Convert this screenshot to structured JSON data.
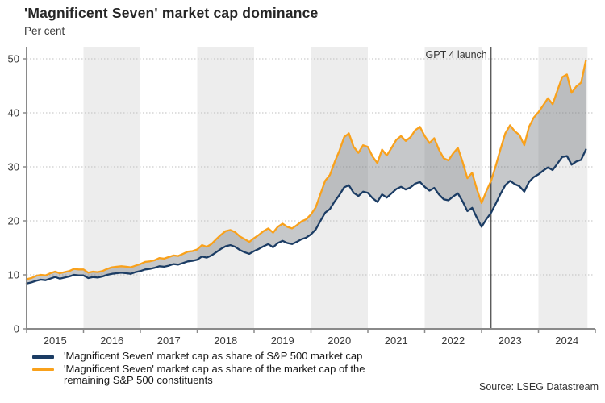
{
  "header": {
    "title": "'Magnificent Seven' market cap dominance",
    "subtitle": "Per cent"
  },
  "source": "Source: LSEG Datastream",
  "legend": [
    {
      "label": "'Magnificent Seven' market cap as share of S&P 500 market cap",
      "color": "#1b3c64"
    },
    {
      "label": "'Magnificent Seven' market cap as share of the market cap of the remaining S&P 500 constituents",
      "color": "#f9a11b"
    }
  ],
  "colors": {
    "band": "#ededed",
    "grid": "#bfbfbf",
    "axis": "#8a8a8a",
    "fill_between": "rgba(105,110,116,0.38)",
    "annotation_line": "#3f3f3f",
    "tick_text": "#3a3a3a"
  },
  "chart_data": {
    "type": "line",
    "title": "'Magnificent Seven' market cap dominance",
    "ylabel": "Per cent",
    "ylim": [
      0,
      52
    ],
    "yticks": [
      0,
      10,
      20,
      30,
      40,
      50
    ],
    "grid": "dotted-horizontal",
    "x_start": "2015-01",
    "x_end": "2024-11",
    "freq": "monthly",
    "xtick_labels": [
      "2015",
      "2016",
      "2017",
      "2018",
      "2019",
      "2020",
      "2021",
      "2022",
      "2023",
      "2024"
    ],
    "shaded_years": [
      2016,
      2018,
      2020,
      2022,
      2024
    ],
    "annotation": {
      "label": "GPT 4 launch",
      "x": "2023-03"
    },
    "legend_position": "bottom",
    "fill_between_series": true,
    "series": [
      {
        "name": "'Magnificent Seven' market cap as share of S&P 500 market cap",
        "color": "#1b3c64",
        "values": [
          8.4,
          8.6,
          8.9,
          9.1,
          9.0,
          9.3,
          9.6,
          9.3,
          9.5,
          9.7,
          10.0,
          9.9,
          9.9,
          9.4,
          9.6,
          9.5,
          9.7,
          10.0,
          10.2,
          10.3,
          10.4,
          10.3,
          10.2,
          10.5,
          10.7,
          11.0,
          11.1,
          11.3,
          11.6,
          11.5,
          11.7,
          12.0,
          11.9,
          12.2,
          12.5,
          12.6,
          12.8,
          13.4,
          13.2,
          13.6,
          14.2,
          14.8,
          15.3,
          15.5,
          15.2,
          14.6,
          14.2,
          13.9,
          14.4,
          14.8,
          15.3,
          15.7,
          15.1,
          15.9,
          16.3,
          15.9,
          15.7,
          16.1,
          16.6,
          16.9,
          17.5,
          18.4,
          20.0,
          21.5,
          22.2,
          23.6,
          24.8,
          26.2,
          26.6,
          25.2,
          24.6,
          25.4,
          25.2,
          24.2,
          23.5,
          24.9,
          24.3,
          25.1,
          25.9,
          26.3,
          25.8,
          26.2,
          26.9,
          27.2,
          26.3,
          25.6,
          26.1,
          24.9,
          24.0,
          23.8,
          24.5,
          25.1,
          23.6,
          21.8,
          22.4,
          20.6,
          18.9,
          20.3,
          21.5,
          23.2,
          25.0,
          26.6,
          27.4,
          26.8,
          26.4,
          25.4,
          27.2,
          28.1,
          28.6,
          29.3,
          29.9,
          29.4,
          30.6,
          31.8,
          32.0,
          30.4,
          31.0,
          31.3,
          33.2
        ]
      },
      {
        "name": "'Magnificent Seven' market cap as share of the market cap of the remaining S&P 500 constituents",
        "color": "#f9a11b",
        "values": [
          9.2,
          9.4,
          9.8,
          10.0,
          9.9,
          10.3,
          10.6,
          10.3,
          10.5,
          10.7,
          11.1,
          11.0,
          11.0,
          10.4,
          10.6,
          10.5,
          10.7,
          11.1,
          11.4,
          11.5,
          11.6,
          11.5,
          11.4,
          11.7,
          12.0,
          12.4,
          12.5,
          12.7,
          13.1,
          13.0,
          13.3,
          13.6,
          13.5,
          13.9,
          14.3,
          14.4,
          14.7,
          15.5,
          15.2,
          15.7,
          16.6,
          17.4,
          18.1,
          18.3,
          17.9,
          17.1,
          16.6,
          16.1,
          16.8,
          17.4,
          18.1,
          18.6,
          17.8,
          18.9,
          19.5,
          18.9,
          18.6,
          19.2,
          19.9,
          20.3,
          21.2,
          22.5,
          25.0,
          27.4,
          28.5,
          30.9,
          33.0,
          35.5,
          36.2,
          33.7,
          32.6,
          34.0,
          33.7,
          31.9,
          30.7,
          33.2,
          32.1,
          33.5,
          35.0,
          35.7,
          34.8,
          35.5,
          36.8,
          37.4,
          35.7,
          34.4,
          35.3,
          33.2,
          31.6,
          31.2,
          32.5,
          33.5,
          30.9,
          27.9,
          28.9,
          25.9,
          23.3,
          25.5,
          27.4,
          30.2,
          33.3,
          36.2,
          37.7,
          36.6,
          35.9,
          34.0,
          37.4,
          39.1,
          40.1,
          41.4,
          42.7,
          41.6,
          44.1,
          46.6,
          47.1,
          43.7,
          44.9,
          45.6,
          49.7
        ]
      }
    ]
  }
}
